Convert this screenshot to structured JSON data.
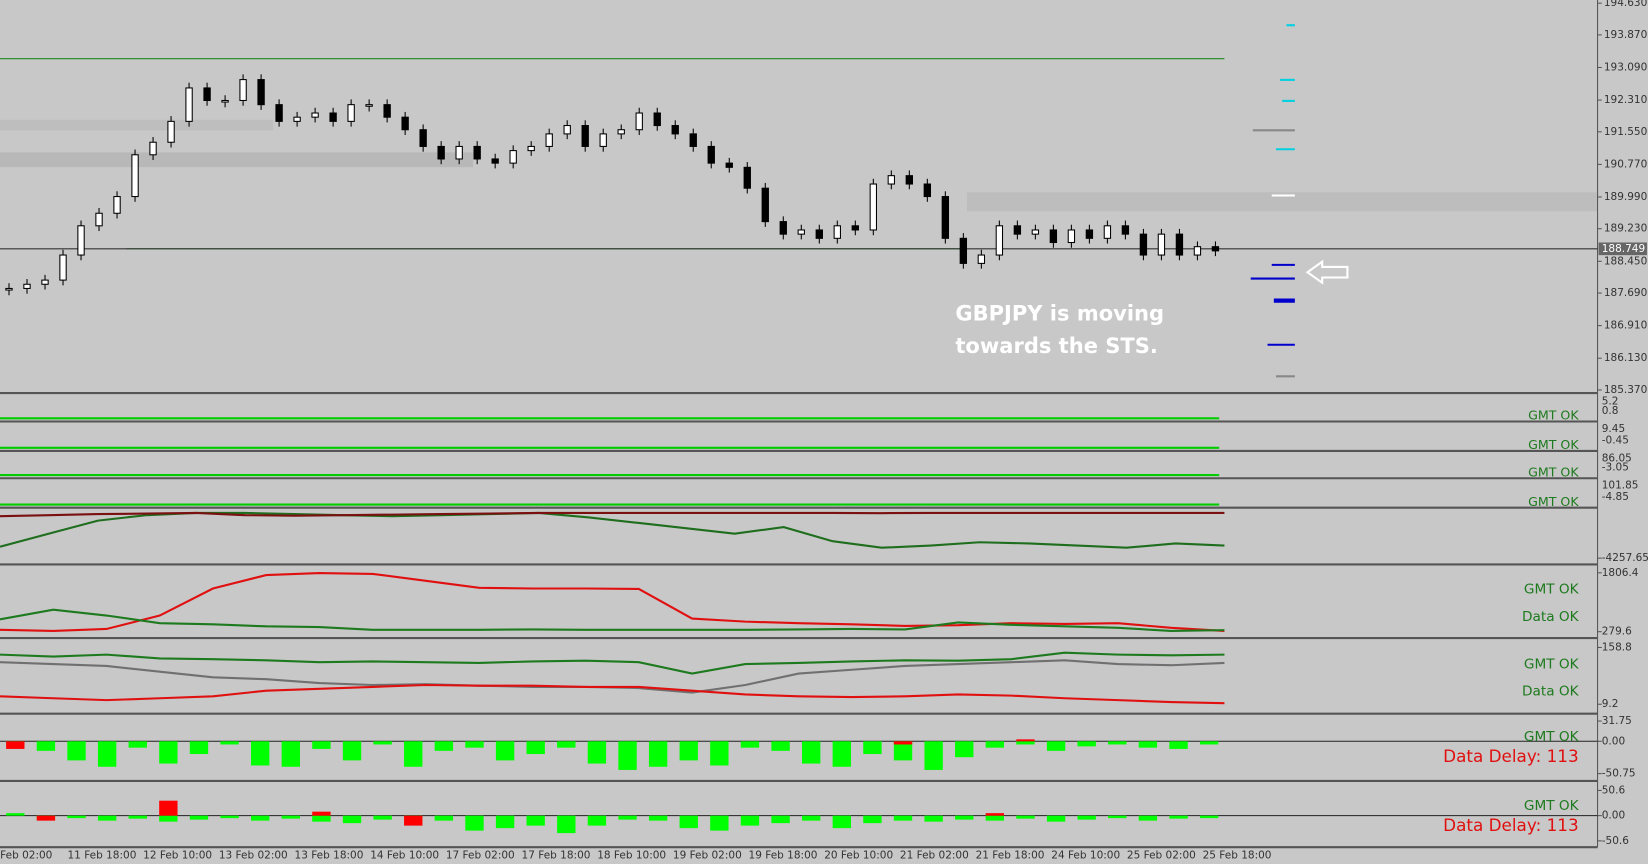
{
  "price_chart": {
    "ylim": [
      185.37,
      194.63
    ],
    "yticks": [
      {
        "value": 194.63,
        "label": "194.630"
      },
      {
        "value": 193.87,
        "label": "193.870"
      },
      {
        "value": 193.09,
        "label": "193.090"
      },
      {
        "value": 192.31,
        "label": "192.310"
      },
      {
        "value": 191.55,
        "label": "191.550"
      },
      {
        "value": 190.77,
        "label": "190.770"
      },
      {
        "value": 189.99,
        "label": "189.990"
      },
      {
        "value": 189.23,
        "label": "189.230"
      },
      {
        "value": 188.45,
        "label": "188.450"
      },
      {
        "value": 187.69,
        "label": "187.690"
      },
      {
        "value": 186.91,
        "label": "186.910"
      },
      {
        "value": 186.13,
        "label": "186.130"
      },
      {
        "value": 185.37,
        "label": "185.370"
      }
    ],
    "current_price": {
      "value": 188.749,
      "label": "188.749"
    },
    "resistance": 193.3,
    "support": 188.75,
    "closes": [
      187.8,
      187.9,
      188.0,
      188.6,
      189.3,
      189.6,
      190.0,
      191.0,
      191.3,
      191.8,
      192.6,
      192.3,
      192.3,
      192.8,
      192.2,
      191.8,
      191.9,
      192.0,
      191.8,
      192.2,
      192.2,
      191.9,
      191.6,
      191.2,
      190.9,
      191.2,
      190.9,
      190.8,
      191.1,
      191.2,
      191.5,
      191.7,
      191.2,
      191.5,
      191.6,
      192.0,
      191.7,
      191.5,
      191.2,
      190.8,
      190.7,
      190.2,
      189.4,
      189.1,
      189.2,
      189.0,
      189.3,
      189.2,
      190.3,
      190.5,
      190.3,
      190.0,
      189.0,
      188.4,
      188.6,
      189.3,
      189.1,
      189.2,
      188.9,
      189.2,
      189.0,
      189.3,
      189.1,
      188.6,
      189.1,
      188.6,
      188.8,
      188.7
    ],
    "annotation": [
      "GBPJPY is moving",
      "towards the STS."
    ]
  },
  "time_axis": [
    "Feb 02:00",
    "11 Feb 18:00",
    "12 Feb 10:00",
    "13 Feb 02:00",
    "13 Feb 18:00",
    "14 Feb 10:00",
    "17 Feb 02:00",
    "17 Feb 18:00",
    "18 Feb 10:00",
    "19 Feb 02:00",
    "19 Feb 18:00",
    "20 Feb 10:00",
    "21 Feb 02:00",
    "21 Feb 18:00",
    "24 Feb 10:00",
    "25 Feb 02:00",
    "25 Feb 18:00"
  ],
  "strips": [
    {
      "labels": [
        "5.2",
        "0.8"
      ],
      "status": "GMT OK"
    },
    {
      "labels": [
        "9.45",
        "-0.45"
      ],
      "status": "GMT OK"
    },
    {
      "labels": [
        "86.05",
        "-3.05"
      ],
      "status": "GMT OK"
    },
    {
      "labels": [
        "101.85",
        "-4.85"
      ],
      "status": "GMT OK"
    }
  ],
  "panels": [
    {
      "type": "line",
      "ylim": [
        -4257.65,
        0
      ],
      "yticks": [
        -4257.65
      ],
      "status": [],
      "series": [
        {
          "color": "#1e6e1e",
          "values": [
            -3200,
            -2000,
            -800,
            -300,
            -100,
            -100,
            -200,
            -300,
            -400,
            -300,
            -200,
            -100,
            -500,
            -1000,
            -1500,
            -2000,
            -1400,
            -2700,
            -3300,
            -3100,
            -2800,
            -2900,
            -3100,
            -3300,
            -2900,
            -3100
          ]
        },
        {
          "color": "#7a1010",
          "values": [
            -400,
            -300,
            -200,
            -150,
            -100,
            -300,
            -350,
            -300,
            -250,
            -200,
            -150,
            -100,
            -100,
            -100,
            -100,
            -100,
            -100,
            -100,
            -120,
            -100,
            -100,
            -100,
            -100,
            -100,
            -100,
            -100
          ]
        }
      ]
    },
    {
      "type": "line",
      "ylim": [
        279.6,
        1806.4
      ],
      "yticks": [
        1806.4,
        279.6
      ],
      "status": [
        "GMT OK",
        "Data OK"
      ],
      "series": [
        {
          "color": "#e01010",
          "values": [
            330,
            300,
            350,
            700,
            1400,
            1750,
            1800,
            1780,
            1600,
            1420,
            1400,
            1400,
            1390,
            620,
            540,
            500,
            470,
            430,
            450,
            500,
            480,
            500,
            380,
            300
          ]
        },
        {
          "color": "#1e7a1e",
          "values": [
            600,
            850,
            700,
            500,
            470,
            420,
            400,
            330,
            330,
            330,
            340,
            330,
            330,
            330,
            330,
            340,
            350,
            340,
            520,
            460,
            420,
            380,
            300,
            320
          ]
        }
      ]
    },
    {
      "type": "line",
      "ylim": [
        9.2,
        158.8
      ],
      "yticks": [
        158.8,
        9.2
      ],
      "status": [
        "GMT OK",
        "Data OK"
      ],
      "series": [
        {
          "color": "#1e7a1e",
          "values": [
            140,
            135,
            140,
            130,
            128,
            125,
            120,
            122,
            120,
            118,
            122,
            124,
            120,
            90,
            115,
            118,
            122,
            125,
            124,
            128,
            145,
            140,
            138,
            140
          ]
        },
        {
          "color": "#707070",
          "values": [
            120,
            115,
            110,
            95,
            80,
            75,
            65,
            60,
            62,
            58,
            55,
            55,
            52,
            40,
            60,
            90,
            100,
            110,
            115,
            120,
            125,
            115,
            112,
            118
          ]
        },
        {
          "color": "#e01010",
          "values": [
            30,
            25,
            20,
            25,
            30,
            45,
            50,
            55,
            60,
            58,
            58,
            55,
            55,
            45,
            35,
            30,
            28,
            30,
            35,
            32,
            25,
            20,
            15,
            12
          ]
        }
      ]
    },
    {
      "type": "bar",
      "ylim": [
        -50.75,
        31.75
      ],
      "yticks": [
        31.75,
        {
          "value": 0,
          "label": "0.00"
        },
        -50.75
      ],
      "status": [
        "GMT OK",
        "Data Delay: 113"
      ],
      "series": [
        {
          "color": "#00ff00",
          "values": [
            -5,
            -15,
            -30,
            -40,
            -10,
            -35,
            -20,
            -5,
            -38,
            -40,
            -12,
            -30,
            -5,
            -40,
            -15,
            -10,
            -30,
            -20,
            -10,
            -35,
            -45,
            -40,
            -30,
            -38,
            -10,
            -15,
            -35,
            -40,
            -20,
            -30,
            -45,
            -25,
            -10,
            -5,
            -15,
            -8,
            -5,
            -10,
            -12,
            -5
          ]
        },
        {
          "color": "#ff0000",
          "values": [
            -12,
            0,
            0,
            0,
            0,
            0,
            0,
            0,
            0,
            0,
            0,
            0,
            0,
            0,
            0,
            0,
            0,
            0,
            0,
            0,
            0,
            0,
            0,
            0,
            0,
            0,
            0,
            0,
            0,
            -5,
            0,
            0,
            0,
            3,
            0,
            0,
            0,
            0,
            0,
            0
          ]
        }
      ]
    },
    {
      "type": "bar",
      "ylim": [
        -50.6,
        50.6
      ],
      "yticks": [
        50.6,
        {
          "value": 0,
          "label": "0.00"
        },
        -50.6
      ],
      "status": [
        "GMT OK",
        "Data Delay: 113"
      ],
      "series": [
        {
          "color": "#00ff00",
          "values": [
            5,
            -8,
            -5,
            -10,
            -6,
            -12,
            -8,
            -5,
            -10,
            -6,
            -12,
            -15,
            -8,
            -5,
            -10,
            -30,
            -25,
            -20,
            -35,
            -20,
            -8,
            -10,
            -25,
            -30,
            -20,
            -15,
            -10,
            -25,
            -15,
            -10,
            -12,
            -8,
            -10,
            -6,
            -12,
            -8,
            -5,
            -10,
            -6,
            -5
          ]
        },
        {
          "color": "#ff0000",
          "values": [
            0,
            -10,
            0,
            0,
            0,
            30,
            0,
            0,
            0,
            0,
            8,
            0,
            0,
            -20,
            0,
            0,
            0,
            0,
            0,
            0,
            0,
            0,
            0,
            0,
            0,
            0,
            0,
            0,
            0,
            0,
            0,
            0,
            5,
            0,
            0,
            0,
            0,
            0,
            0,
            0
          ]
        }
      ]
    }
  ]
}
